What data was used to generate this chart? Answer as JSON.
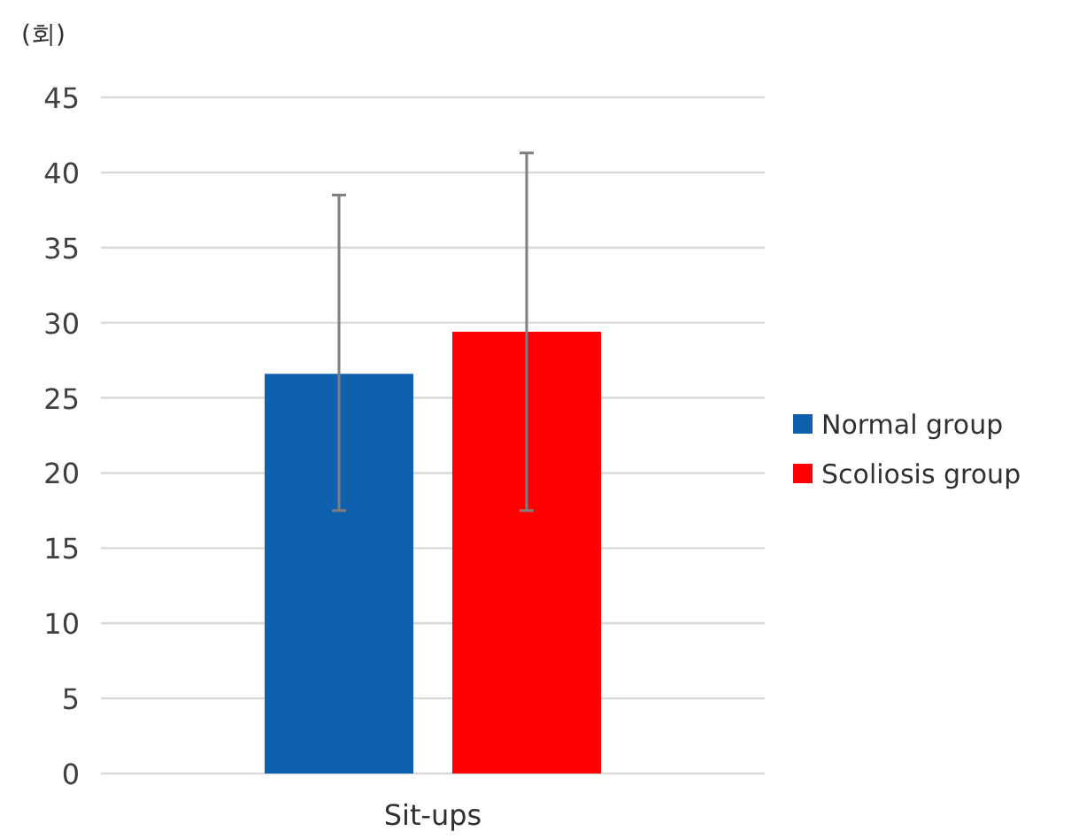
{
  "chart_data": {
    "type": "bar",
    "ylabel": "(회)",
    "categories": [
      "Sit-ups"
    ],
    "series": [
      {
        "name": "Normal group",
        "color": "#1060b0",
        "values": [
          26.6
        ],
        "errors": [
          [
            17.5,
            38.5
          ]
        ]
      },
      {
        "name": "Scoliosis group",
        "color": "#ff0000",
        "values": [
          29.4
        ],
        "errors": [
          [
            17.5,
            41.3
          ]
        ]
      }
    ],
    "ylim": [
      0,
      45
    ],
    "yticks": [
      0,
      5,
      10,
      15,
      20,
      25,
      30,
      35,
      40,
      45
    ],
    "grid": "y",
    "legend": "right"
  }
}
